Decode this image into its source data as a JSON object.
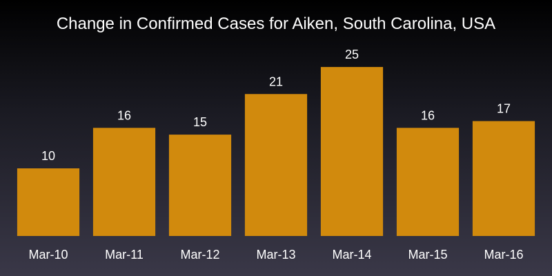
{
  "chart_data": {
    "type": "bar",
    "title": "Change in Confirmed Cases for Aiken, South Carolina, USA",
    "xlabel": "",
    "ylabel": "",
    "categories": [
      "Mar-10",
      "Mar-11",
      "Mar-12",
      "Mar-13",
      "Mar-14",
      "Mar-15",
      "Mar-16"
    ],
    "values": [
      10,
      16,
      15,
      21,
      25,
      16,
      17
    ],
    "ylim": [
      0,
      29.5
    ],
    "grid": false,
    "legend": "none",
    "data_labels": true,
    "colors": {
      "bar": "#D18A0D",
      "text": "#ffffff"
    }
  }
}
